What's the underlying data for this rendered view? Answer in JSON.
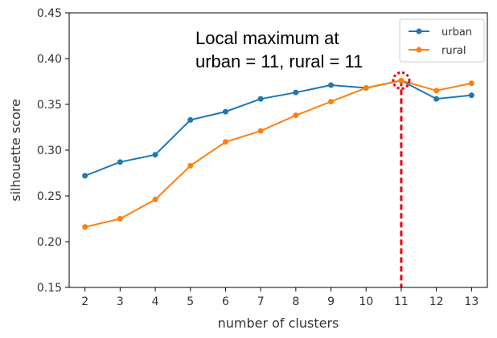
{
  "chart_data": {
    "type": "line",
    "xlabel": "number of clusters",
    "ylabel": "silhouette score",
    "x": [
      2,
      3,
      4,
      5,
      6,
      7,
      8,
      9,
      10,
      11,
      12,
      13
    ],
    "xlim": [
      1.55,
      13.45
    ],
    "ylim": [
      0.15,
      0.45
    ],
    "yticks": [
      "0.15",
      "0.20",
      "0.25",
      "0.30",
      "0.35",
      "0.40",
      "0.45"
    ],
    "xticks": [
      "2",
      "3",
      "4",
      "5",
      "6",
      "7",
      "8",
      "9",
      "10",
      "11",
      "12",
      "13"
    ],
    "grid": false,
    "legend_position": "top-right",
    "series": [
      {
        "name": "urban",
        "color": "#1f77b4",
        "values": [
          0.272,
          0.287,
          0.295,
          0.333,
          0.342,
          0.356,
          0.363,
          0.371,
          0.368,
          0.376,
          0.356,
          0.36
        ]
      },
      {
        "name": "rural",
        "color": "#ff7f0e",
        "values": [
          0.216,
          0.225,
          0.246,
          0.283,
          0.309,
          0.321,
          0.338,
          0.353,
          0.368,
          0.376,
          0.365,
          0.373
        ]
      }
    ],
    "annotation": {
      "lines": [
        "Local maximum at",
        "urban = 11, rural = 11"
      ],
      "x": 11,
      "y": 0.376,
      "marker_color": "#e8000b"
    }
  }
}
